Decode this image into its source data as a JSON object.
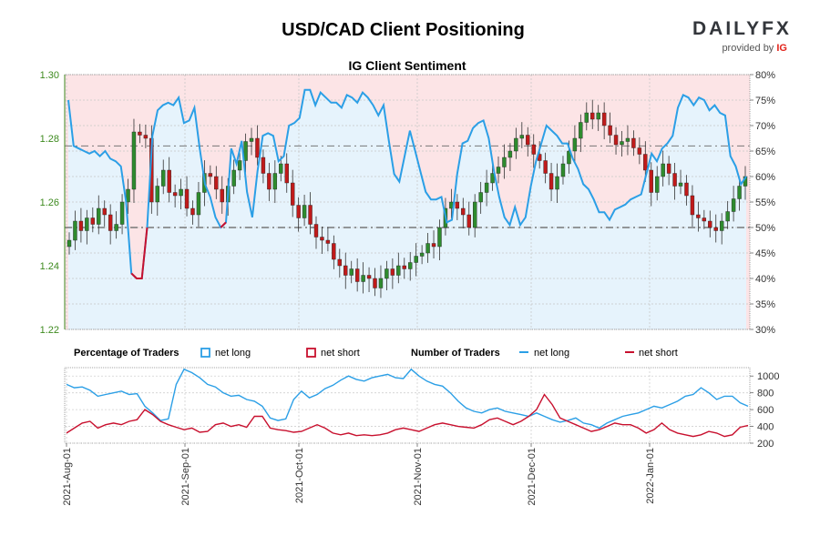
{
  "header": {
    "title": "USD/CAD Client Positioning",
    "logo_text": "DAILYFX",
    "logo_sub": "provided by",
    "logo_brand": "IG"
  },
  "colors": {
    "long": "#2b9fe6",
    "short": "#c8102e",
    "long_fill": "#e6f3fc",
    "short_fill": "#fce4e6",
    "candle_up": "#2e8b2e",
    "candle_down": "#c01a1a",
    "left_axis": "#3d8a1e"
  },
  "chart_data": [
    {
      "type": "candlestick+line",
      "title": "IG Client Sentiment",
      "left_axis": {
        "ylim": [
          1.22,
          1.3
        ],
        "ticks": [
          "1.22",
          "1.24",
          "1.26",
          "1.28",
          "1.30"
        ]
      },
      "right_axis": {
        "ylim": [
          30,
          80
        ],
        "ticks": [
          "30%",
          "35%",
          "40%",
          "45%",
          "50%",
          "55%",
          "60%",
          "65%",
          "70%",
          "75%",
          "80%"
        ]
      },
      "reference_lines_pct": [
        50,
        66
      ],
      "x_labels": [
        "2021-Aug-01",
        "2021-Sep-01",
        "2021-Oct-01",
        "2021-Nov-01",
        "2021-Dec-01",
        "2022-Jan-01"
      ],
      "net_long_pct": [
        75.0,
        66.0,
        65.5,
        65.0,
        64.5,
        65.0,
        64.0,
        65.0,
        63.5,
        63.0,
        62.0,
        55.0,
        41.0,
        40.0,
        40.0,
        50.0,
        68.0,
        73.0,
        74.0,
        74.5,
        74.0,
        75.5,
        70.5,
        71.0,
        73.5,
        65.5,
        58.5,
        56.0,
        52.0,
        50.0,
        51.0,
        65.5,
        62.5,
        67.0,
        57.0,
        52.0,
        61.0,
        68.0,
        68.5,
        68.0,
        63.0,
        64.0,
        70.0,
        70.5,
        71.5,
        77.0,
        77.0,
        74.0,
        76.5,
        75.5,
        74.5,
        74.5,
        73.5,
        76.0,
        75.5,
        74.5,
        76.5,
        75.5,
        74.0,
        72.0,
        74.0,
        67.0,
        60.5,
        59.0,
        64.0,
        69.0,
        65.0,
        61.0,
        57.0,
        55.5,
        55.5,
        56.0,
        51.0,
        51.5,
        60.5,
        66.5,
        67.0,
        69.5,
        70.5,
        71.0,
        67.5,
        61.0,
        56.0,
        52.0,
        50.5,
        54.0,
        50.5,
        52.0,
        58.0,
        63.0,
        66.5,
        70.0,
        69.0,
        68.0,
        66.5,
        66.5,
        63.5,
        61.5,
        58.5,
        57.5,
        55.5,
        53.0,
        53.0,
        51.5,
        53.5,
        54.0,
        54.5,
        55.5,
        56.0,
        56.5,
        60.5,
        64.5,
        63.0,
        65.5,
        66.5,
        68.0,
        73.5,
        76.0,
        75.5,
        74.0,
        75.5,
        75.0,
        73.0,
        74.0,
        72.5,
        72.0,
        64.0,
        62.0,
        58.5,
        60.0
      ],
      "net_short_pct": [
        25.0,
        34.0,
        34.5,
        35.0,
        35.5,
        35.0,
        36.0,
        35.0,
        36.5,
        37.0,
        38.0,
        45.0,
        59.0,
        60.0,
        60.0,
        50.0,
        32.0,
        27.0,
        26.0,
        25.5,
        26.0,
        24.5,
        29.5,
        29.0,
        26.5,
        34.5,
        41.5,
        44.0,
        48.0,
        50.0,
        49.0,
        34.5,
        37.5,
        33.0,
        43.0,
        48.0,
        39.0,
        32.0,
        31.5,
        32.0,
        37.0,
        36.0,
        30.0,
        29.5,
        28.5,
        23.0,
        23.0,
        26.0,
        23.5,
        24.5,
        25.5,
        25.5,
        26.5,
        24.0,
        24.5,
        25.5,
        23.5,
        24.5,
        26.0,
        28.0,
        26.0,
        33.0,
        39.5,
        41.0,
        36.0,
        31.0,
        35.0,
        39.0,
        43.0,
        44.5,
        44.5,
        44.0,
        49.0,
        48.5,
        39.5,
        33.5,
        33.0,
        30.5,
        29.5,
        29.0,
        32.5,
        39.0,
        44.0,
        48.0,
        49.5,
        46.0,
        49.5,
        48.0,
        42.0,
        37.0,
        33.5,
        30.0,
        31.0,
        32.0,
        33.5,
        33.5,
        36.5,
        38.5,
        41.5,
        42.5,
        44.5,
        47.0,
        47.0,
        48.5,
        46.5,
        46.0,
        45.5,
        44.5,
        44.0,
        43.5,
        39.5,
        35.5,
        37.0,
        34.5,
        33.5,
        32.0,
        26.5,
        24.0,
        24.5,
        26.0,
        24.5,
        25.0,
        27.0,
        26.0,
        27.5,
        28.0,
        36.0,
        38.0,
        41.5,
        40.0
      ],
      "candle_close": [
        1.248,
        1.254,
        1.251,
        1.255,
        1.253,
        1.258,
        1.256,
        1.251,
        1.253,
        1.26,
        1.264,
        1.282,
        1.281,
        1.28,
        1.26,
        1.265,
        1.27,
        1.263,
        1.262,
        1.264,
        1.258,
        1.256,
        1.263,
        1.269,
        1.268,
        1.264,
        1.26,
        1.265,
        1.27,
        1.273,
        1.279,
        1.28,
        1.274,
        1.269,
        1.264,
        1.269,
        1.272,
        1.266,
        1.259,
        1.255,
        1.259,
        1.253,
        1.249,
        1.248,
        1.247,
        1.242,
        1.24,
        1.237,
        1.239,
        1.235,
        1.237,
        1.236,
        1.233,
        1.236,
        1.239,
        1.237,
        1.24,
        1.239,
        1.241,
        1.243,
        1.244,
        1.247,
        1.246,
        1.252,
        1.258,
        1.26,
        1.258,
        1.256,
        1.252,
        1.26,
        1.263,
        1.266,
        1.269,
        1.271,
        1.274,
        1.276,
        1.28,
        1.281,
        1.278,
        1.275,
        1.273,
        1.269,
        1.264,
        1.268,
        1.272,
        1.276,
        1.28,
        1.285,
        1.288,
        1.286,
        1.288,
        1.284,
        1.281,
        1.278,
        1.279,
        1.28,
        1.277,
        1.275,
        1.27,
        1.263,
        1.268,
        1.272,
        1.269,
        1.265,
        1.266,
        1.262,
        1.256,
        1.255,
        1.254,
        1.252,
        1.251,
        1.254,
        1.257,
        1.261,
        1.265,
        1.268
      ],
      "net_long_traders": [
        900,
        860,
        870,
        830,
        760,
        780,
        800,
        820,
        780,
        790,
        640,
        560,
        470,
        490,
        900,
        1080,
        1040,
        980,
        900,
        870,
        800,
        760,
        770,
        720,
        700,
        640,
        500,
        470,
        490,
        720,
        820,
        740,
        780,
        850,
        890,
        950,
        1000,
        960,
        940,
        980,
        1000,
        1020,
        980,
        970,
        1080,
        1000,
        940,
        900,
        880,
        800,
        700,
        620,
        580,
        560,
        600,
        620,
        580,
        560,
        540,
        520,
        560,
        520,
        480,
        450,
        470,
        500,
        440,
        420,
        380,
        440,
        480,
        520,
        540,
        560,
        600,
        640,
        620,
        660,
        700,
        760,
        780,
        860,
        800,
        720,
        760,
        760,
        680,
        640
      ],
      "net_short_traders": [
        320,
        380,
        440,
        460,
        380,
        420,
        440,
        420,
        460,
        480,
        600,
        540,
        460,
        420,
        390,
        360,
        380,
        330,
        340,
        420,
        440,
        400,
        420,
        390,
        520,
        520,
        380,
        360,
        350,
        330,
        340,
        380,
        420,
        380,
        320,
        300,
        320,
        290,
        300,
        290,
        300,
        320,
        360,
        380,
        360,
        340,
        380,
        420,
        440,
        420,
        400,
        390,
        380,
        420,
        480,
        500,
        460,
        420,
        460,
        520,
        600,
        780,
        660,
        500,
        460,
        420,
        380,
        340,
        360,
        400,
        440,
        420,
        420,
        380,
        320,
        360,
        440,
        360,
        320,
        300,
        280,
        300,
        340,
        320,
        280,
        300,
        390,
        410
      ]
    },
    {
      "type": "line",
      "legend": {
        "pct_title": "Percentage of Traders",
        "pct_long": "net long",
        "pct_short": "net short",
        "num_title": "Number of Traders",
        "num_long": "net long",
        "num_short": "net short"
      },
      "right_axis": {
        "ylim": [
          200,
          1100
        ],
        "ticks": [
          "200",
          "400",
          "600",
          "800",
          "1000"
        ]
      }
    }
  ]
}
